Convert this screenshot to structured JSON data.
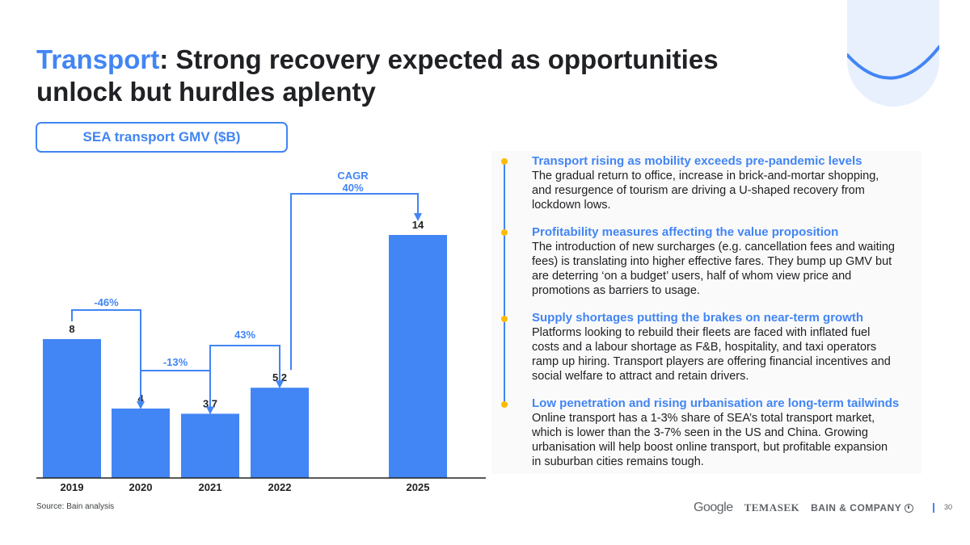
{
  "header": {
    "title_accent": "Transport",
    "title_rest": ": Strong recovery expected as opportunities unlock but hurdles aplenty"
  },
  "chart_box_label": "SEA transport GMV ($B)",
  "chart_data": {
    "type": "bar",
    "categories": [
      "2019",
      "2020",
      "2021",
      "2022",
      "2025"
    ],
    "values": [
      8,
      4,
      3.7,
      5.2,
      14
    ],
    "value_labels": [
      "8",
      "4",
      "3.7",
      "5.2",
      "14"
    ],
    "bar_color": "#4285f4",
    "changes": [
      {
        "from": "2019",
        "to": "2020",
        "label": "-46%"
      },
      {
        "from": "2020",
        "to": "2021",
        "label": "-13%"
      },
      {
        "from": "2021",
        "to": "2022",
        "label": "43%"
      },
      {
        "from": "2022",
        "to": "2025",
        "label_line1": "CAGR",
        "label_line2": "40%"
      }
    ],
    "title": "SEA transport GMV ($B)",
    "xlabel": "",
    "ylabel": ""
  },
  "insights": [
    {
      "title": "Transport rising as mobility exceeds pre-pandemic levels",
      "lines": [
        "The gradual return to office, increase in brick-and-mortar shopping,",
        "and resurgence of tourism are driving a U-shaped recovery from",
        "lockdown lows."
      ]
    },
    {
      "title": "Profitability measures affecting the value proposition",
      "lines": [
        "The introduction of new surcharges (e.g. cancellation fees and waiting",
        "fees) is translating into higher effective fares. They bump up GMV but",
        "are deterring ‘on a budget’ users, half of whom view price and",
        "promotions as barriers to usage."
      ]
    },
    {
      "title": "Supply shortages putting the brakes on near-term growth",
      "lines": [
        "Platforms looking to rebuild their fleets are faced with inflated fuel",
        "costs and a labour shortage as F&B, hospitality, and taxi operators",
        "ramp up hiring. Transport players are offering financial incentives and",
        "social welfare to attract and retain drivers."
      ]
    },
    {
      "title": "Low penetration and rising urbanisation are long-term tailwinds",
      "lines": [
        "Online transport has a 1-3% share of SEA’s total transport market,",
        "which is lower than the 3-7% seen in the US and China. Growing",
        "urbanisation will help boost online transport, but profitable expansion",
        "in suburban cities remains tough."
      ]
    }
  ],
  "footer": {
    "source": "Source: Bain analysis",
    "logo_google": "Google",
    "logo_temasek": "TEMASEK",
    "logo_bain": "BAIN & COMPANY",
    "page_number": "30"
  },
  "colors": {
    "accent": "#4285f4",
    "bullet": "#fbbc04",
    "text": "#202124"
  }
}
